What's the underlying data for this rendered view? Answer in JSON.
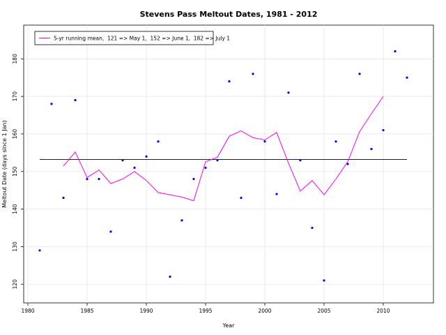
{
  "chart_data": {
    "type": "line",
    "title": "Stevens Pass Meltout Dates, 1981 - 2012",
    "xlabel": "Year",
    "ylabel": "Meltout Date (days since 1 Jan)",
    "xlim": [
      1980,
      2013
    ],
    "ylim": [
      118,
      186
    ],
    "x_ticks": [
      1980,
      1985,
      1990,
      1995,
      2000,
      2005,
      2010
    ],
    "y_ticks": [
      120,
      130,
      140,
      150,
      160,
      170,
      180
    ],
    "grid": true,
    "legend_position": "top-left",
    "series": [
      {
        "kind": "scatter",
        "color": "#0000ff",
        "points": [
          {
            "x": 1981,
            "y": 129
          },
          {
            "x": 1982,
            "y": 168
          },
          {
            "x": 1983,
            "y": 143
          },
          {
            "x": 1984,
            "y": 169
          },
          {
            "x": 1985,
            "y": 148
          },
          {
            "x": 1986,
            "y": 148
          },
          {
            "x": 1987,
            "y": 134
          },
          {
            "x": 1988,
            "y": 153
          },
          {
            "x": 1989,
            "y": 151
          },
          {
            "x": 1990,
            "y": 154
          },
          {
            "x": 1991,
            "y": 158
          },
          {
            "x": 1992,
            "y": 122
          },
          {
            "x": 1993,
            "y": 137
          },
          {
            "x": 1994,
            "y": 148
          },
          {
            "x": 1995,
            "y": 151
          },
          {
            "x": 1996,
            "y": 153
          },
          {
            "x": 1997,
            "y": 174
          },
          {
            "x": 1998,
            "y": 143
          },
          {
            "x": 1999,
            "y": 176
          },
          {
            "x": 2000,
            "y": 158
          },
          {
            "x": 2001,
            "y": 144
          },
          {
            "x": 2002,
            "y": 171
          },
          {
            "x": 2003,
            "y": 153
          },
          {
            "x": 2004,
            "y": 135
          },
          {
            "x": 2005,
            "y": 121
          },
          {
            "x": 2006,
            "y": 158
          },
          {
            "x": 2007,
            "y": 152
          },
          {
            "x": 2008,
            "y": 176
          },
          {
            "x": 2009,
            "y": 156
          },
          {
            "x": 2010,
            "y": 161
          },
          {
            "x": 2011,
            "y": 182
          },
          {
            "x": 2012,
            "y": 175
          }
        ]
      },
      {
        "kind": "line",
        "name": "5-yr running mean,  121 => May 1,  152 => June 1,  182 => July 1",
        "color": "#ff00ff",
        "points": [
          {
            "x": 1983,
            "y": 151.4
          },
          {
            "x": 1984,
            "y": 155.2
          },
          {
            "x": 1985,
            "y": 148.4
          },
          {
            "x": 1986,
            "y": 150.4
          },
          {
            "x": 1987,
            "y": 146.8
          },
          {
            "x": 1988,
            "y": 148.0
          },
          {
            "x": 1989,
            "y": 150.0
          },
          {
            "x": 1990,
            "y": 147.6
          },
          {
            "x": 1991,
            "y": 144.4
          },
          {
            "x": 1992,
            "y": 143.8
          },
          {
            "x": 1993,
            "y": 143.2
          },
          {
            "x": 1994,
            "y": 142.2
          },
          {
            "x": 1995,
            "y": 152.6
          },
          {
            "x": 1996,
            "y": 153.8
          },
          {
            "x": 1997,
            "y": 159.4
          },
          {
            "x": 1998,
            "y": 160.8
          },
          {
            "x": 1999,
            "y": 159.0
          },
          {
            "x": 2000,
            "y": 158.4
          },
          {
            "x": 2001,
            "y": 160.4
          },
          {
            "x": 2002,
            "y": 152.2
          },
          {
            "x": 2003,
            "y": 144.8
          },
          {
            "x": 2004,
            "y": 147.6
          },
          {
            "x": 2005,
            "y": 143.8
          },
          {
            "x": 2006,
            "y": 148.0
          },
          {
            "x": 2007,
            "y": 152.6
          },
          {
            "x": 2008,
            "y": 160.6
          },
          {
            "x": 2009,
            "y": 165.4
          },
          {
            "x": 2010,
            "y": 170.0
          }
        ]
      },
      {
        "kind": "hline",
        "color": "#000000",
        "y": 153.2,
        "x_range": [
          1981,
          2012
        ]
      }
    ]
  }
}
